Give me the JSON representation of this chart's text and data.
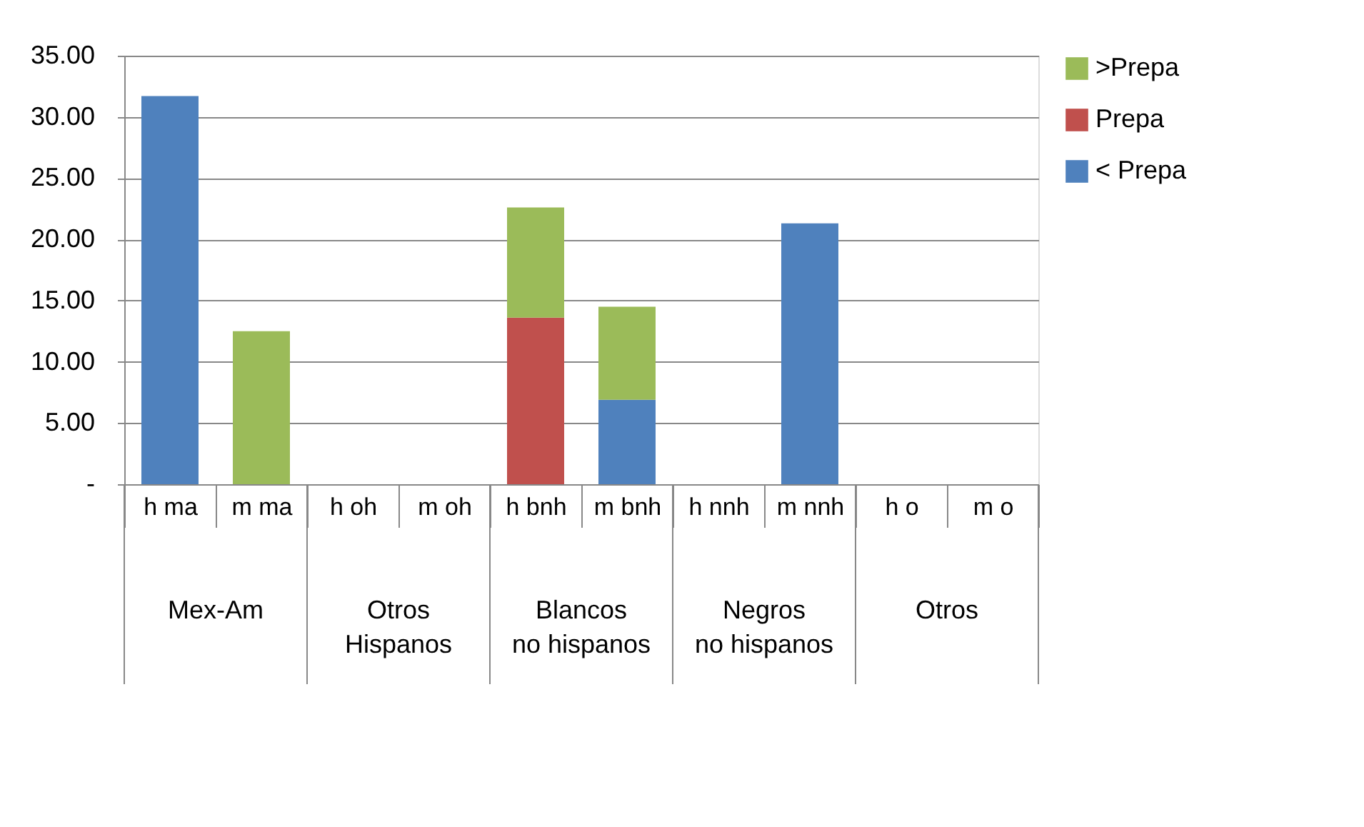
{
  "chart_data": {
    "type": "bar",
    "stacked": true,
    "categories": [
      "h ma",
      "m ma",
      "h oh",
      "m oh",
      "h bnh",
      "m bnh",
      "h nnh",
      "m nnh",
      "h o",
      "m o"
    ],
    "annotations": [
      "Mex-Am",
      "Otros Hispanos",
      "Blancos no hispanos",
      "Negros no hispanos",
      "Otros"
    ],
    "series": [
      {
        "name": "< Prepa",
        "color": "#4f81bd",
        "values": [
          31.7,
          null,
          null,
          null,
          null,
          6.9,
          null,
          21.3,
          null,
          null
        ]
      },
      {
        "name": "Prepa",
        "color": "#c0504d",
        "values": [
          null,
          null,
          null,
          null,
          13.6,
          null,
          null,
          null,
          null,
          null
        ]
      },
      {
        "name": ">Prepa",
        "color": "#9bbb59",
        "values": [
          null,
          12.5,
          null,
          null,
          9.0,
          7.6,
          null,
          null,
          null,
          null
        ]
      }
    ],
    "ylim": [
      0,
      35
    ],
    "yticks": [
      {
        "value": 0,
        "label": "-"
      },
      {
        "value": 5,
        "label": "5.00"
      },
      {
        "value": 10,
        "label": "10.00"
      },
      {
        "value": 15,
        "label": "15.00"
      },
      {
        "value": 20,
        "label": "20.00"
      },
      {
        "value": 25,
        "label": "25.00"
      },
      {
        "value": 30,
        "label": "30.00"
      },
      {
        "value": 35,
        "label": "35.00"
      }
    ],
    "grid": "y",
    "legend": "right"
  }
}
